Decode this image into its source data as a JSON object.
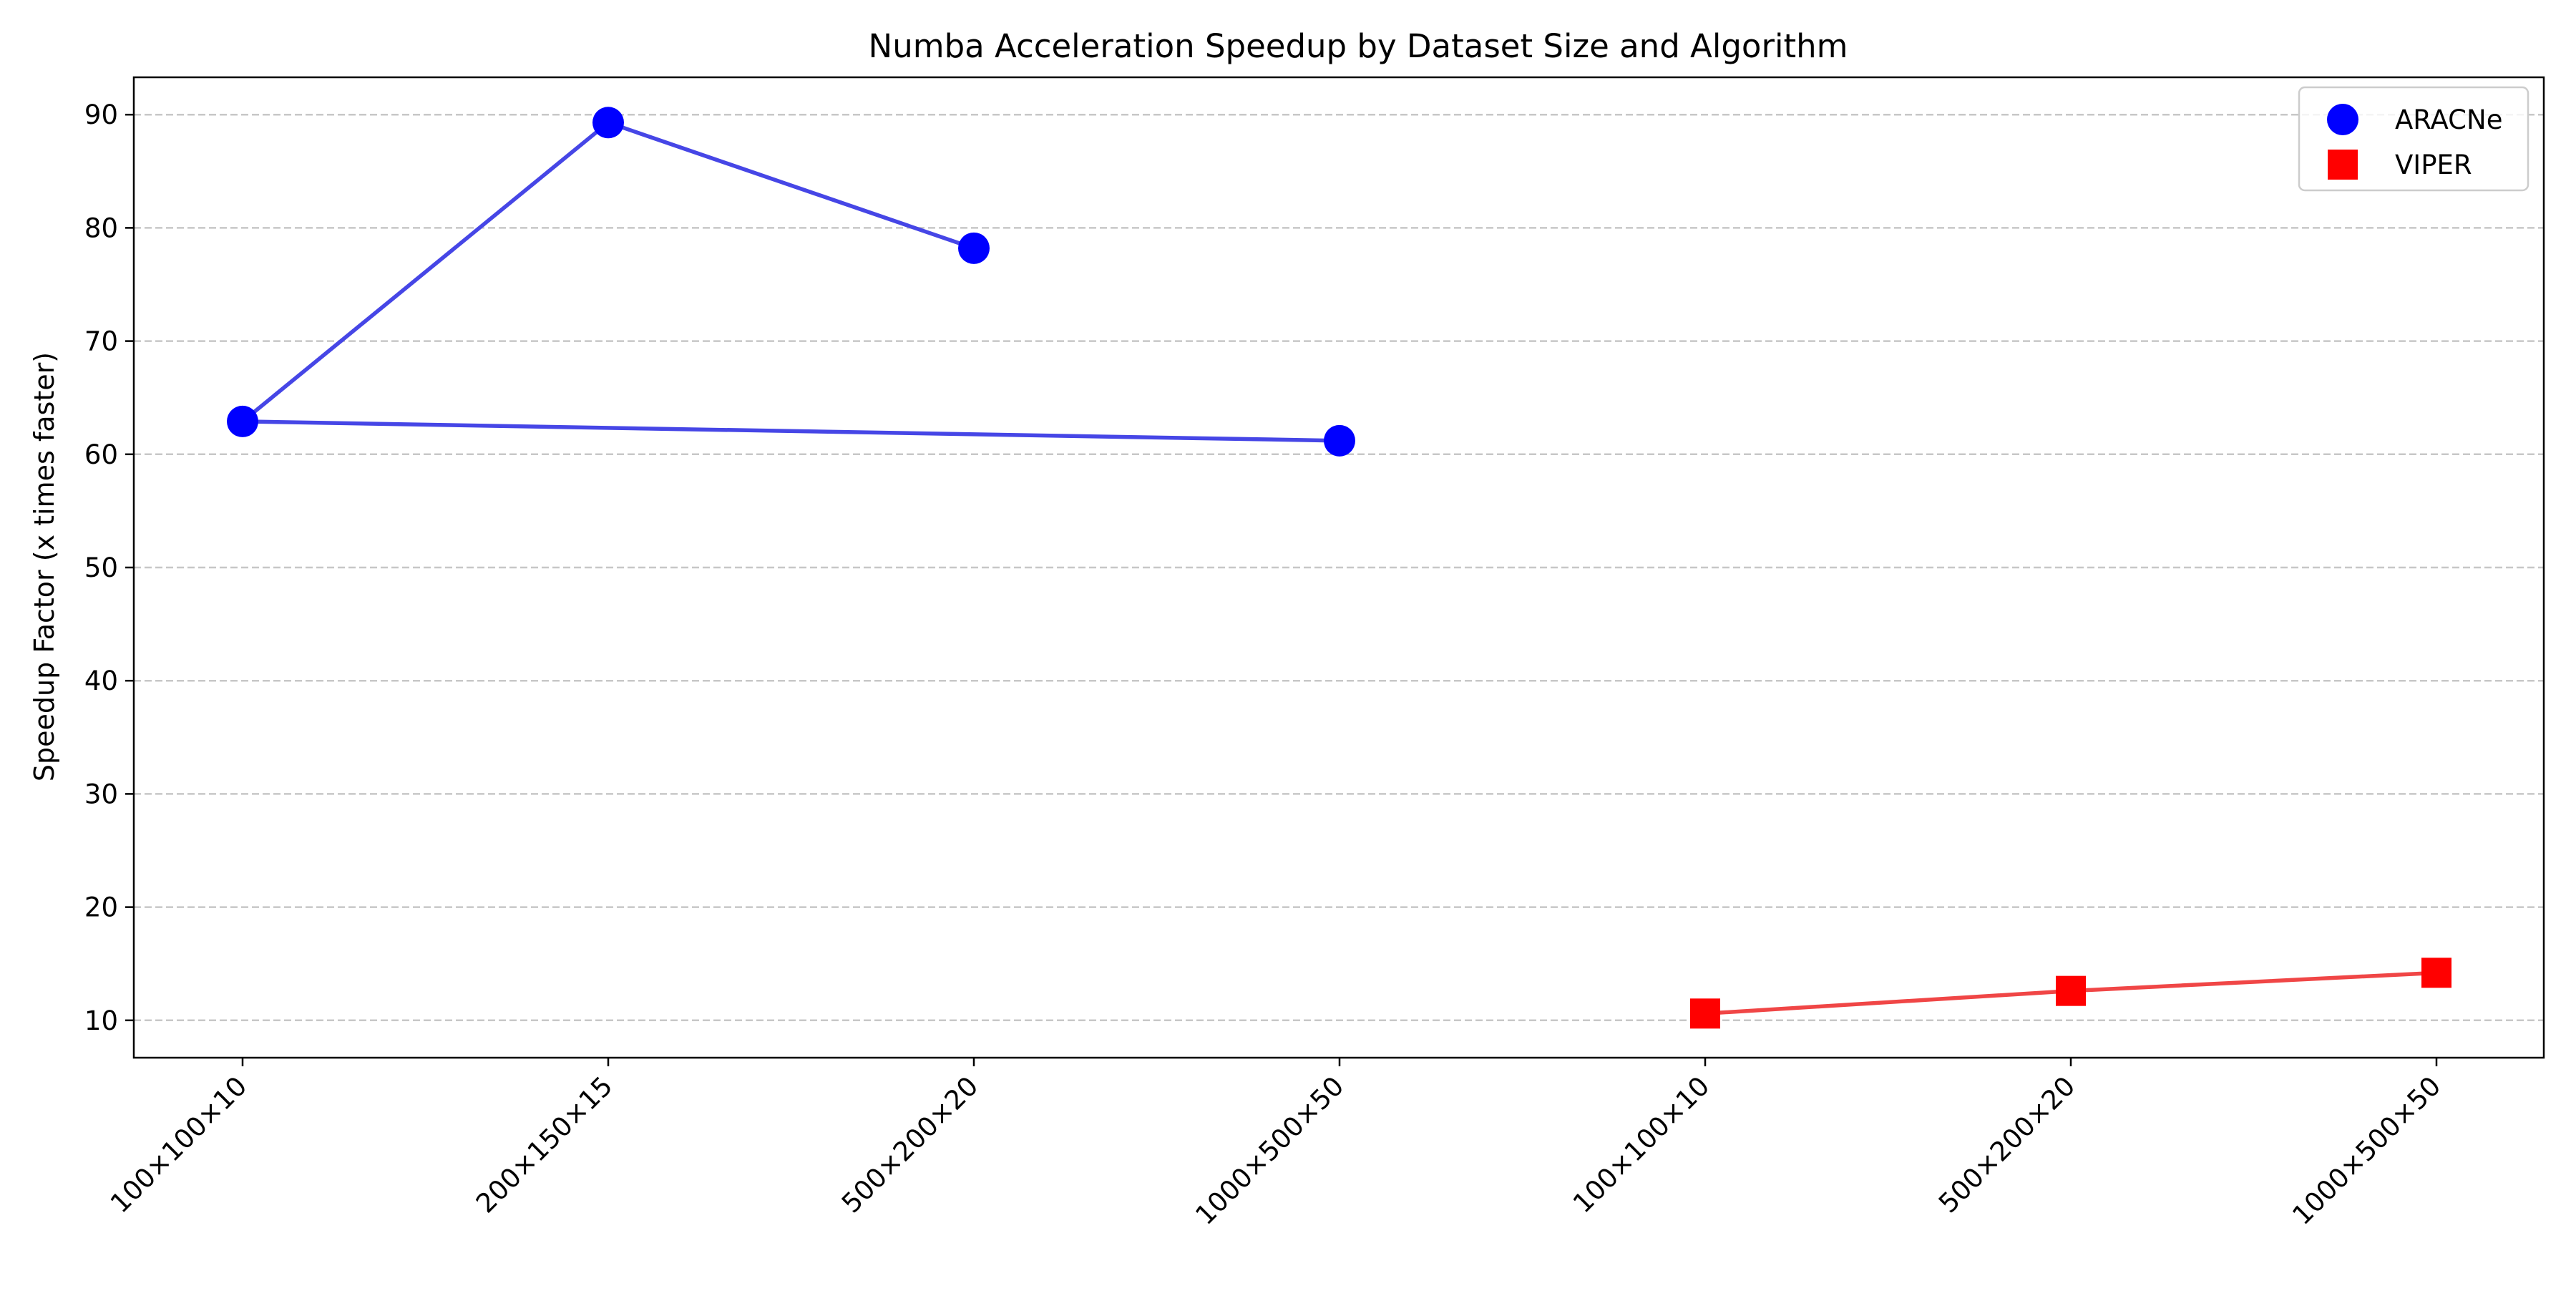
{
  "chart_data": {
    "type": "line",
    "title": "Numba Acceleration Speedup by Dataset Size and Algorithm",
    "xlabel": "",
    "ylabel": "Speedup Factor (x times faster)",
    "categories": [
      "100×100×10",
      "200×150×15",
      "500×200×20",
      "1000×500×50",
      "100×100×10",
      "500×200×20",
      "1000×500×50"
    ],
    "ylim": [
      6.7,
      93.3
    ],
    "yticks": [
      10,
      20,
      30,
      40,
      50,
      60,
      70,
      80,
      90
    ],
    "grid": "y-dashed",
    "legend_position": "top-right",
    "series": [
      {
        "name": "ARACNe",
        "marker": "circle",
        "color": "#0000ff",
        "line_color": "#4646e6",
        "points": [
          {
            "category_index": 0,
            "value": 62.9
          },
          {
            "category_index": 1,
            "value": 89.3
          },
          {
            "category_index": 2,
            "value": 78.2
          },
          {
            "category_index": 3,
            "value": 61.2
          }
        ],
        "line_order": [
          3,
          0,
          1,
          2
        ]
      },
      {
        "name": "VIPER",
        "marker": "square",
        "color": "#ff0000",
        "line_color": "#f04646",
        "points": [
          {
            "category_index": 4,
            "value": 10.6
          },
          {
            "category_index": 5,
            "value": 12.6
          },
          {
            "category_index": 6,
            "value": 14.2
          }
        ],
        "line_order": [
          0,
          1,
          2
        ]
      }
    ]
  }
}
